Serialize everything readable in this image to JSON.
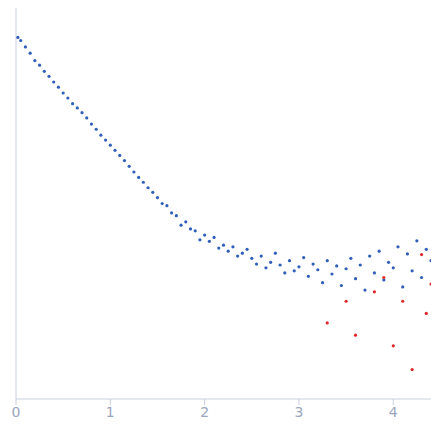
{
  "chart_data": {
    "type": "scatter",
    "log": "y",
    "grid": false,
    "tick_labels": "x",
    "marker": "circle",
    "xlim": [
      0,
      4.4
    ],
    "xticks": [
      0,
      1,
      2,
      3,
      4
    ],
    "ylim": [
      0.0002,
      2
    ],
    "yticks": [
      0.001,
      0.01,
      0.1,
      1
    ],
    "series": [
      {
        "color": "#2f5fb8",
        "x": [
          0.02,
          0.05,
          0.1,
          0.15,
          0.2,
          0.25,
          0.3,
          0.35,
          0.4,
          0.45,
          0.5,
          0.55,
          0.6,
          0.65,
          0.7,
          0.75,
          0.8,
          0.85,
          0.9,
          0.95,
          1.0,
          1.05,
          1.1,
          1.15,
          1.2,
          1.25,
          1.3,
          1.35,
          1.4,
          1.45,
          1.5,
          1.55,
          1.6,
          1.65,
          1.7,
          1.75,
          1.8,
          1.85,
          1.9,
          1.95,
          2.0,
          2.05,
          2.1,
          2.15,
          2.2,
          2.25,
          2.3,
          2.35,
          2.4,
          2.45,
          2.5,
          2.55,
          2.6,
          2.65,
          2.7,
          2.75,
          2.8,
          2.85,
          2.9,
          2.95,
          3.0,
          3.05,
          3.1,
          3.15,
          3.2,
          3.25,
          3.3,
          3.35,
          3.4,
          3.45,
          3.5,
          3.55,
          3.6,
          3.65,
          3.7,
          3.75,
          3.8,
          3.85,
          3.9,
          3.95,
          4.0,
          4.05,
          4.1,
          4.15,
          4.2,
          4.25,
          4.3,
          4.35,
          4.4
        ],
        "values": [
          1.0,
          0.93,
          0.8,
          0.69,
          0.58,
          0.52,
          0.45,
          0.4,
          0.35,
          0.31,
          0.27,
          0.24,
          0.21,
          0.19,
          0.17,
          0.15,
          0.13,
          0.115,
          0.1,
          0.089,
          0.079,
          0.07,
          0.062,
          0.055,
          0.048,
          0.042,
          0.037,
          0.033,
          0.029,
          0.026,
          0.023,
          0.02,
          0.019,
          0.016,
          0.015,
          0.012,
          0.013,
          0.011,
          0.0105,
          0.0085,
          0.0095,
          0.0082,
          0.009,
          0.007,
          0.0075,
          0.0065,
          0.0072,
          0.0058,
          0.0062,
          0.0068,
          0.0055,
          0.0048,
          0.0058,
          0.0044,
          0.005,
          0.0062,
          0.0047,
          0.0039,
          0.0052,
          0.0041,
          0.0045,
          0.0056,
          0.0036,
          0.0048,
          0.0042,
          0.0031,
          0.0052,
          0.0038,
          0.0046,
          0.0029,
          0.0043,
          0.0055,
          0.0034,
          0.0047,
          0.0026,
          0.0058,
          0.0039,
          0.0065,
          0.0033,
          0.005,
          0.0044,
          0.0072,
          0.0028,
          0.0061,
          0.0041,
          0.0083,
          0.0035,
          0.0068,
          0.0052
        ]
      },
      {
        "color": "#e02828",
        "x": [
          3.3,
          3.5,
          3.6,
          3.8,
          3.9,
          4.0,
          4.1,
          4.2,
          4.3,
          4.35,
          4.4
        ],
        "values": [
          0.0012,
          0.002,
          0.0009,
          0.0025,
          0.0035,
          0.0007,
          0.002,
          0.0004,
          0.006,
          0.0015,
          0.003
        ]
      }
    ]
  }
}
